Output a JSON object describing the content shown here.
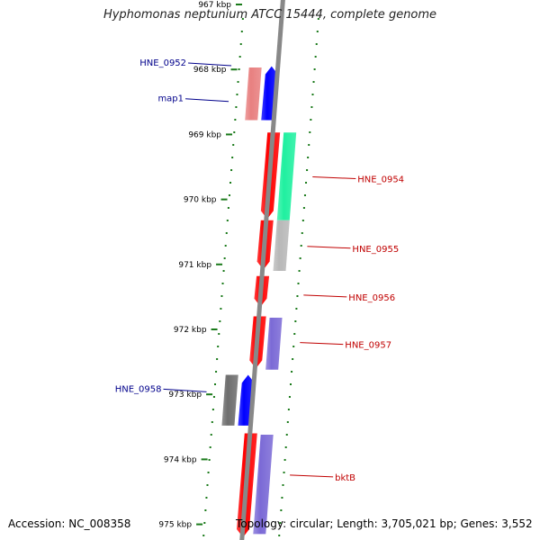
{
  "title": "Hyphomonas neptunium ATCC 15444, complete genome",
  "accession_line": "Accession: NC_008358",
  "summary_line": "Topology: circular; Length: 3,705,021 bp; Genes: 3,552",
  "colors": {
    "forward_strand": "#0000ff",
    "reverse_strand": "#ff0000",
    "forward_label": "#00008b",
    "reverse_label": "#c00000",
    "tick": "#1a7a1a",
    "backbone": "#888888",
    "cds_salmon": "#e88080",
    "cds_green": "#20f0a0",
    "cds_grey": "#b8b8b8",
    "cds_purple": "#7b6ad6",
    "cds_dark_grey": "#6e6e6e",
    "cds_orange": "#ff9900"
  },
  "scale": {
    "unit": "kbp",
    "ticks": [
      {
        "label": "967 kbp",
        "kbp": 967
      },
      {
        "label": "968 kbp",
        "kbp": 968
      },
      {
        "label": "969 kbp",
        "kbp": 969
      },
      {
        "label": "970 kbp",
        "kbp": 970
      },
      {
        "label": "971 kbp",
        "kbp": 971
      },
      {
        "label": "972 kbp",
        "kbp": 972
      },
      {
        "label": "973 kbp",
        "kbp": 973
      },
      {
        "label": "974 kbp",
        "kbp": 974
      },
      {
        "label": "975 kbp",
        "kbp": 975
      }
    ]
  },
  "features": [
    {
      "name": "HNE_0952",
      "strand": "forward",
      "color": "forward_strand",
      "start_kbp": 967.95,
      "end_kbp": 968.78
    },
    {
      "name": "map1",
      "strand": "forward",
      "color": "cds_salmon",
      "start_kbp": 967.97,
      "end_kbp": 968.78
    },
    {
      "name": "HNE_0954",
      "strand": "reverse",
      "color": "reverse_strand",
      "start_kbp": 968.97,
      "end_kbp": 970.3
    },
    {
      "name": "HNE_0954",
      "strand": "reverse",
      "color": "cds_green",
      "start_kbp": 968.97,
      "end_kbp": 970.32
    },
    {
      "name": "HNE_0955",
      "strand": "reverse",
      "color": "reverse_strand",
      "start_kbp": 970.32,
      "end_kbp": 971.08
    },
    {
      "name": "HNE_0955",
      "strand": "reverse",
      "color": "cds_grey",
      "start_kbp": 970.32,
      "end_kbp": 971.1
    },
    {
      "name": "HNE_0956",
      "strand": "reverse",
      "color": "reverse_strand",
      "start_kbp": 971.18,
      "end_kbp": 971.65
    },
    {
      "name": "HNE_0957",
      "strand": "reverse",
      "color": "reverse_strand",
      "start_kbp": 971.8,
      "end_kbp": 972.6
    },
    {
      "name": "HNE_0957",
      "strand": "reverse",
      "color": "cds_purple",
      "start_kbp": 971.82,
      "end_kbp": 972.62
    },
    {
      "name": "HNE_0958",
      "strand": "forward",
      "color": "forward_strand",
      "start_kbp": 972.7,
      "end_kbp": 973.48
    },
    {
      "name": "HNE_0958",
      "strand": "forward",
      "color": "cds_dark_grey",
      "start_kbp": 972.7,
      "end_kbp": 973.48
    },
    {
      "name": "bktB",
      "strand": "reverse",
      "color": "reverse_strand",
      "start_kbp": 973.6,
      "end_kbp": 975.2
    },
    {
      "name": "bktB",
      "strand": "reverse",
      "color": "cds_purple",
      "start_kbp": 973.62,
      "end_kbp": 975.15
    }
  ],
  "labels": [
    {
      "text": "HNE_0952",
      "side": "left",
      "kbp": 967.9,
      "color": "forward_label"
    },
    {
      "text": "map1",
      "side": "left",
      "kbp": 968.45,
      "color": "forward_label"
    },
    {
      "text": "HNE_0954",
      "side": "right",
      "kbp": 969.68,
      "color": "reverse_label"
    },
    {
      "text": "HNE_0955",
      "side": "right",
      "kbp": 970.75,
      "color": "reverse_label"
    },
    {
      "text": "HNE_0956",
      "side": "right",
      "kbp": 971.5,
      "color": "reverse_label"
    },
    {
      "text": "HNE_0957",
      "side": "right",
      "kbp": 972.23,
      "color": "reverse_label"
    },
    {
      "text": "HNE_0958",
      "side": "left",
      "kbp": 972.92,
      "color": "forward_label"
    },
    {
      "text": "bktB",
      "side": "right",
      "kbp": 974.27,
      "color": "reverse_label"
    }
  ]
}
